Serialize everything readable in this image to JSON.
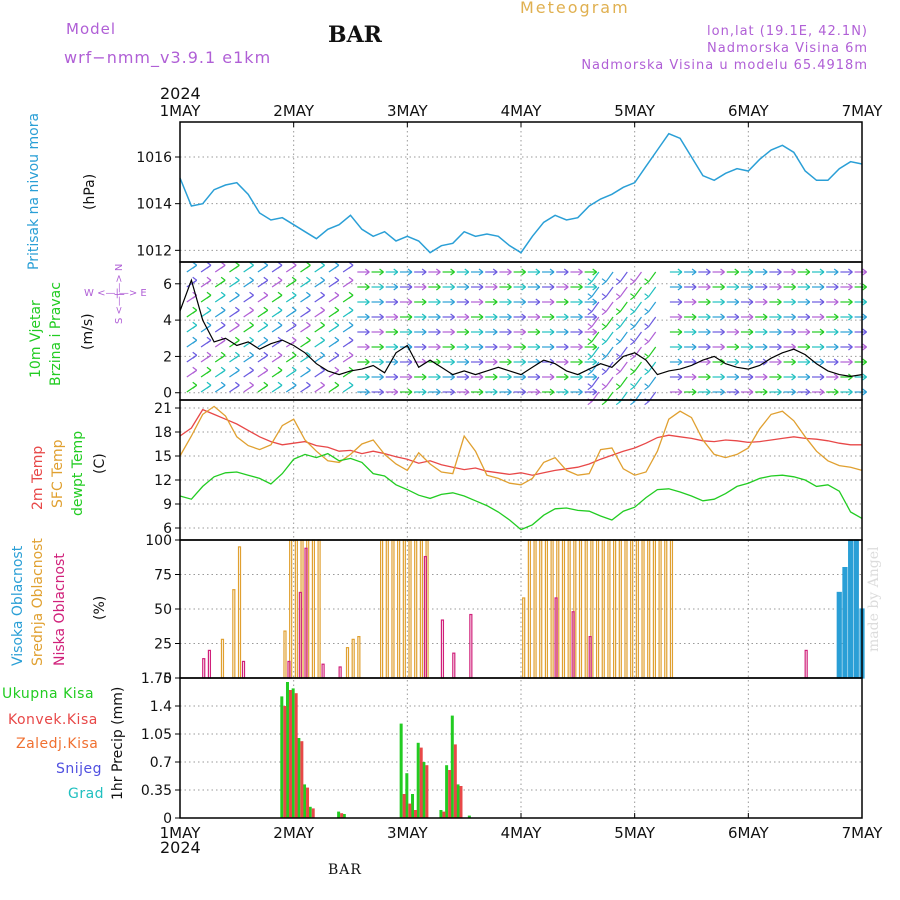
{
  "header": {
    "title": "Meteogram",
    "model_label": "Model",
    "model_name": "wrf−nmm_v3.9.1  e1km",
    "station": "BAR",
    "coords": "lon,lat (19.1E, 42.1N)",
    "elevation": "Nadmorska Visina 6m",
    "model_elevation": "Nadmorska Visina u modelu 65.4918m"
  },
  "time_axis": {
    "year": "2024",
    "ticks": [
      "1MAY",
      "2MAY",
      "3MAY",
      "4MAY",
      "5MAY",
      "6MAY",
      "7MAY"
    ]
  },
  "footer": {
    "station": "BAR",
    "credit": "made by Angel"
  },
  "panels": {
    "pressure": {
      "ylabel": "Pritisak na nivou mora",
      "unit": "(hPa)"
    },
    "wind": {
      "ylabel_1": "10m Vjetar",
      "ylabel_2": "Brzina i Pravac",
      "unit": "(m/s)",
      "compass": "W  <—|—>  E",
      "compass_v": "S <—|—> N"
    },
    "temp": {
      "label_1": "2m Temp",
      "label_2": "SFC Temp",
      "label_3": "dewpt Temp",
      "unit": "(C)"
    },
    "cloud": {
      "label_1": "Visoka Oblacnost",
      "label_2": "Srednja Oblacnost",
      "label_3": "Niska Oblacnost",
      "unit": "(%)"
    },
    "precip": {
      "legend": [
        "Ukupna Kisa",
        "Konvek.Kisa",
        "Zaledj.Kisa",
        "Snijeg",
        "Grad"
      ],
      "unit": "1hr Precip (mm)"
    }
  },
  "colors": {
    "pressure": "#2a9fd6",
    "t2m": "#e84848",
    "tsfc": "#e0a030",
    "dewpt": "#22cc22",
    "cloud_high": "#2a9fd6",
    "cloud_mid": "#e0a030",
    "cloud_low": "#d0207a",
    "precip_total": "#22cc22",
    "precip_conv": "#e84848",
    "precip_frz": "#f07030",
    "snow": "#5050e0",
    "hail": "#20c0c0",
    "purple": "#b05fd6"
  },
  "chart_data": [
    {
      "type": "line",
      "panel": "pressure",
      "ylabel": "Pritisak na nivou mora (hPa)",
      "ylim": [
        1011.5,
        1017.5
      ],
      "yticks": [
        1012,
        1014,
        1016
      ],
      "x_unit": "days since 1 MAY 2024",
      "grid": true,
      "series": [
        {
          "name": "Pritisak na nivou mora",
          "x": [
            0,
            0.1,
            0.2,
            0.3,
            0.4,
            0.5,
            0.6,
            0.7,
            0.8,
            0.9,
            1.0,
            1.1,
            1.2,
            1.3,
            1.4,
            1.5,
            1.6,
            1.7,
            1.8,
            1.9,
            2.0,
            2.1,
            2.2,
            2.3,
            2.4,
            2.5,
            2.6,
            2.7,
            2.8,
            2.9,
            3.0,
            3.1,
            3.2,
            3.3,
            3.4,
            3.5,
            3.6,
            3.7,
            3.8,
            3.9,
            4.0,
            4.1,
            4.2,
            4.3,
            4.4,
            4.5,
            4.6,
            4.7,
            4.8,
            4.9,
            5.0,
            5.1,
            5.2,
            5.3,
            5.4,
            5.5,
            5.6,
            5.7,
            5.8,
            5.9,
            6.0
          ],
          "values": [
            1015.1,
            1013.9,
            1014.0,
            1014.6,
            1014.8,
            1014.9,
            1014.4,
            1013.6,
            1013.3,
            1013.4,
            1013.1,
            1012.8,
            1012.5,
            1012.9,
            1013.1,
            1013.5,
            1012.9,
            1012.6,
            1012.8,
            1012.4,
            1012.6,
            1012.4,
            1011.9,
            1012.2,
            1012.3,
            1012.8,
            1012.6,
            1012.7,
            1012.6,
            1012.2,
            1011.9,
            1012.6,
            1013.2,
            1013.5,
            1013.3,
            1013.4,
            1013.9,
            1014.2,
            1014.4,
            1014.7,
            1014.9,
            1015.6,
            1016.3,
            1017.0,
            1016.8,
            1016.0,
            1015.2,
            1015.0,
            1015.3,
            1015.5,
            1015.4,
            1015.9,
            1016.3,
            1016.5,
            1016.2,
            1015.4,
            1015.0,
            1015.0,
            1015.5,
            1015.8,
            1015.7
          ]
        }
      ]
    },
    {
      "type": "line",
      "panel": "wind",
      "ylabel": "10m Vjetar Brzina i Pravac (m/s)",
      "ylim": [
        -0.4,
        7.2
      ],
      "yticks": [
        0,
        2,
        4,
        6
      ],
      "grid": true,
      "series": [
        {
          "name": "wind speed",
          "x": [
            0,
            0.1,
            0.2,
            0.3,
            0.4,
            0.5,
            0.6,
            0.7,
            0.8,
            0.9,
            1.0,
            1.1,
            1.2,
            1.3,
            1.4,
            1.5,
            1.6,
            1.7,
            1.8,
            1.9,
            2.0,
            2.1,
            2.2,
            2.3,
            2.4,
            2.5,
            2.6,
            2.7,
            2.8,
            2.9,
            3.0,
            3.1,
            3.2,
            3.3,
            3.4,
            3.5,
            3.6,
            3.7,
            3.8,
            3.9,
            4.0,
            4.1,
            4.2,
            4.3,
            4.4,
            4.5,
            4.6,
            4.7,
            4.8,
            4.9,
            5.0,
            5.1,
            5.2,
            5.3,
            5.4,
            5.5,
            5.6,
            5.7,
            5.8,
            5.9,
            6.0
          ],
          "values": [
            4.5,
            6.2,
            4.0,
            2.8,
            3.0,
            2.6,
            2.8,
            2.4,
            2.7,
            2.9,
            2.6,
            2.2,
            1.6,
            1.2,
            1.0,
            1.2,
            1.3,
            1.5,
            1.1,
            2.2,
            2.6,
            1.4,
            1.8,
            1.4,
            1.0,
            1.2,
            1.0,
            1.2,
            1.4,
            1.2,
            1.0,
            1.4,
            1.8,
            1.6,
            1.2,
            1.0,
            1.3,
            1.6,
            1.4,
            2.0,
            2.2,
            1.8,
            1.0,
            1.2,
            1.3,
            1.5,
            1.8,
            2.0,
            1.6,
            1.4,
            1.3,
            1.5,
            1.9,
            2.2,
            2.4,
            2.1,
            1.6,
            1.2,
            1.0,
            0.9,
            1.0
          ]
        }
      ]
    },
    {
      "type": "line",
      "panel": "temp",
      "ylabel": "(C)",
      "ylim": [
        4.5,
        22
      ],
      "yticks": [
        6,
        9,
        12,
        15,
        18,
        21
      ],
      "grid": true,
      "series": [
        {
          "name": "2m Temp",
          "x": [
            0,
            0.1,
            0.2,
            0.3,
            0.4,
            0.5,
            0.6,
            0.7,
            0.8,
            0.9,
            1.0,
            1.1,
            1.2,
            1.3,
            1.4,
            1.5,
            1.6,
            1.7,
            1.8,
            1.9,
            2.0,
            2.1,
            2.2,
            2.3,
            2.4,
            2.5,
            2.6,
            2.7,
            2.8,
            2.9,
            3.0,
            3.1,
            3.2,
            3.3,
            3.4,
            3.5,
            3.6,
            3.7,
            3.8,
            3.9,
            4.0,
            4.1,
            4.2,
            4.3,
            4.4,
            4.5,
            4.6,
            4.7,
            4.8,
            4.9,
            5.0,
            5.1,
            5.2,
            5.3,
            5.4,
            5.5,
            5.6,
            5.7,
            5.8,
            5.9,
            6.0
          ],
          "values": [
            17.5,
            18.5,
            20.8,
            20.2,
            19.6,
            19.0,
            18.2,
            17.4,
            16.8,
            16.4,
            16.6,
            16.8,
            16.3,
            16.1,
            15.6,
            15.7,
            15.3,
            15.6,
            15.3,
            14.9,
            14.6,
            14.1,
            14.4,
            13.9,
            13.6,
            13.3,
            13.5,
            13.1,
            12.9,
            12.7,
            12.9,
            12.6,
            12.9,
            13.2,
            13.4,
            13.6,
            14.0,
            14.6,
            15.1,
            15.6,
            16.0,
            16.6,
            17.3,
            17.6,
            17.4,
            17.2,
            16.9,
            16.8,
            17.0,
            16.9,
            16.7,
            16.8,
            17.0,
            17.2,
            17.4,
            17.2,
            17.1,
            16.9,
            16.6,
            16.4,
            16.4
          ]
        },
        {
          "name": "SFC Temp",
          "x": [
            0,
            0.1,
            0.2,
            0.3,
            0.4,
            0.5,
            0.6,
            0.7,
            0.8,
            0.9,
            1.0,
            1.1,
            1.2,
            1.3,
            1.4,
            1.5,
            1.6,
            1.7,
            1.8,
            1.9,
            2.0,
            2.1,
            2.2,
            2.3,
            2.4,
            2.5,
            2.6,
            2.7,
            2.8,
            2.9,
            3.0,
            3.1,
            3.2,
            3.3,
            3.4,
            3.5,
            3.6,
            3.7,
            3.8,
            3.9,
            4.0,
            4.1,
            4.2,
            4.3,
            4.4,
            4.5,
            4.6,
            4.7,
            4.8,
            4.9,
            5.0,
            5.1,
            5.2,
            5.3,
            5.4,
            5.5,
            5.6,
            5.7,
            5.8,
            5.9,
            6.0
          ],
          "values": [
            15.0,
            17.5,
            20.2,
            21.2,
            20.0,
            17.4,
            16.3,
            15.8,
            16.4,
            18.8,
            19.6,
            17.0,
            15.6,
            14.4,
            14.2,
            15.2,
            16.5,
            17.0,
            15.2,
            14.0,
            13.2,
            15.4,
            14.0,
            13.0,
            12.8,
            17.5,
            15.6,
            12.6,
            12.2,
            11.6,
            11.4,
            12.2,
            14.2,
            14.8,
            13.2,
            12.6,
            12.8,
            15.8,
            16.0,
            13.4,
            12.6,
            13.0,
            15.6,
            19.6,
            20.6,
            19.8,
            17.0,
            15.2,
            14.8,
            15.2,
            16.0,
            18.4,
            20.2,
            20.6,
            19.4,
            17.4,
            15.6,
            14.4,
            13.8,
            13.6,
            13.2
          ]
        },
        {
          "name": "dewpt Temp",
          "x": [
            0,
            0.1,
            0.2,
            0.3,
            0.4,
            0.5,
            0.6,
            0.7,
            0.8,
            0.9,
            1.0,
            1.1,
            1.2,
            1.3,
            1.4,
            1.5,
            1.6,
            1.7,
            1.8,
            1.9,
            2.0,
            2.1,
            2.2,
            2.3,
            2.4,
            2.5,
            2.6,
            2.7,
            2.8,
            2.9,
            3.0,
            3.1,
            3.2,
            3.3,
            3.4,
            3.5,
            3.6,
            3.7,
            3.8,
            3.9,
            4.0,
            4.1,
            4.2,
            4.3,
            4.4,
            4.5,
            4.6,
            4.7,
            4.8,
            4.9,
            5.0,
            5.1,
            5.2,
            5.3,
            5.4,
            5.5,
            5.6,
            5.7,
            5.8,
            5.9,
            6.0
          ],
          "values": [
            10.0,
            9.6,
            11.2,
            12.4,
            12.9,
            13.0,
            12.6,
            12.2,
            11.5,
            12.8,
            14.6,
            15.2,
            14.8,
            15.3,
            14.4,
            14.7,
            14.2,
            12.8,
            12.5,
            11.4,
            10.8,
            10.1,
            9.7,
            10.2,
            10.4,
            10.0,
            9.4,
            8.8,
            8.0,
            7.0,
            5.8,
            6.4,
            7.6,
            8.4,
            8.5,
            8.2,
            8.1,
            7.5,
            7.0,
            8.1,
            8.6,
            9.8,
            10.8,
            10.9,
            10.5,
            10.0,
            9.4,
            9.6,
            10.3,
            11.2,
            11.6,
            12.2,
            12.5,
            12.6,
            12.4,
            12.0,
            11.2,
            11.4,
            10.6,
            8.0,
            7.2
          ]
        }
      ]
    },
    {
      "type": "bar",
      "panel": "cloud",
      "ylabel": "(%)",
      "ylim": [
        0,
        100
      ],
      "yticks": [
        0,
        25,
        50,
        75,
        100
      ],
      "grid": true,
      "series": [
        {
          "name": "Visoka Oblacnost",
          "x": [
            5.8,
            5.85,
            5.9,
            5.95,
            6.0
          ],
          "values": [
            62,
            80,
            100,
            100,
            50
          ]
        },
        {
          "name": "Srednja Oblacnost",
          "x": [
            0.4,
            0.5,
            0.55,
            0.6,
            0.95,
            1.0,
            1.05,
            1.1,
            1.15,
            1.2,
            1.25,
            1.5,
            1.55,
            1.6,
            1.8,
            1.85,
            1.9,
            1.95,
            2.0,
            2.05,
            2.1,
            2.15,
            2.2,
            3.05,
            3.1,
            3.15,
            3.2,
            3.25,
            3.3,
            3.35,
            3.4,
            3.45,
            3.5,
            3.55,
            3.6,
            3.65,
            3.7,
            3.75,
            3.8,
            3.85,
            3.9,
            3.95,
            4.0,
            4.05,
            4.1,
            4.15,
            4.2,
            4.25,
            4.3,
            4.35
          ],
          "values": [
            28,
            64,
            95,
            0,
            34,
            100,
            100,
            100,
            100,
            100,
            100,
            22,
            28,
            30,
            100,
            100,
            100,
            100,
            100,
            100,
            100,
            100,
            100,
            58,
            100,
            100,
            100,
            100,
            100,
            100,
            100,
            100,
            100,
            100,
            100,
            100,
            100,
            100,
            100,
            100,
            100,
            100,
            100,
            100,
            100,
            100,
            100,
            100,
            100,
            100
          ]
        },
        {
          "name": "Niska Oblacnost",
          "x": [
            0.2,
            0.25,
            0.55,
            0.95,
            1.05,
            1.1,
            1.25,
            1.4,
            2.15,
            2.3,
            2.4,
            2.55,
            3.3,
            3.45,
            3.6,
            5.5
          ],
          "values": [
            14,
            20,
            12,
            12,
            62,
            94,
            10,
            8,
            88,
            42,
            18,
            46,
            58,
            48,
            30,
            20
          ]
        }
      ]
    },
    {
      "type": "bar",
      "panel": "precip",
      "ylabel": "1hr Precip (mm)",
      "ylim": [
        0,
        1.75
      ],
      "yticks": [
        0,
        0.35,
        0.7,
        1.05,
        1.4,
        1.75
      ],
      "grid": true,
      "series": [
        {
          "name": "Ukupna Kisa",
          "x": [
            0.9,
            0.95,
            1.0,
            1.05,
            1.1,
            1.15,
            1.4,
            1.45,
            1.95,
            2.0,
            2.05,
            2.1,
            2.15,
            2.3,
            2.35,
            2.4,
            2.45,
            2.55
          ],
          "values": [
            1.52,
            1.7,
            1.62,
            1.0,
            0.42,
            0.14,
            0.08,
            0.05,
            1.18,
            0.56,
            0.3,
            0.94,
            0.7,
            0.1,
            0.66,
            1.28,
            0.42,
            0.03
          ]
        },
        {
          "name": "Konvek.Kisa",
          "x": [
            0.9,
            0.95,
            1.0,
            1.05,
            1.1,
            1.15,
            1.4,
            1.95,
            2.0,
            2.05,
            2.1,
            2.15,
            2.3,
            2.35,
            2.4,
            2.45
          ],
          "values": [
            1.4,
            1.6,
            1.56,
            0.96,
            0.38,
            0.12,
            0.06,
            0.3,
            0.18,
            0.1,
            0.88,
            0.66,
            0.08,
            0.6,
            0.92,
            0.4
          ]
        }
      ]
    }
  ]
}
